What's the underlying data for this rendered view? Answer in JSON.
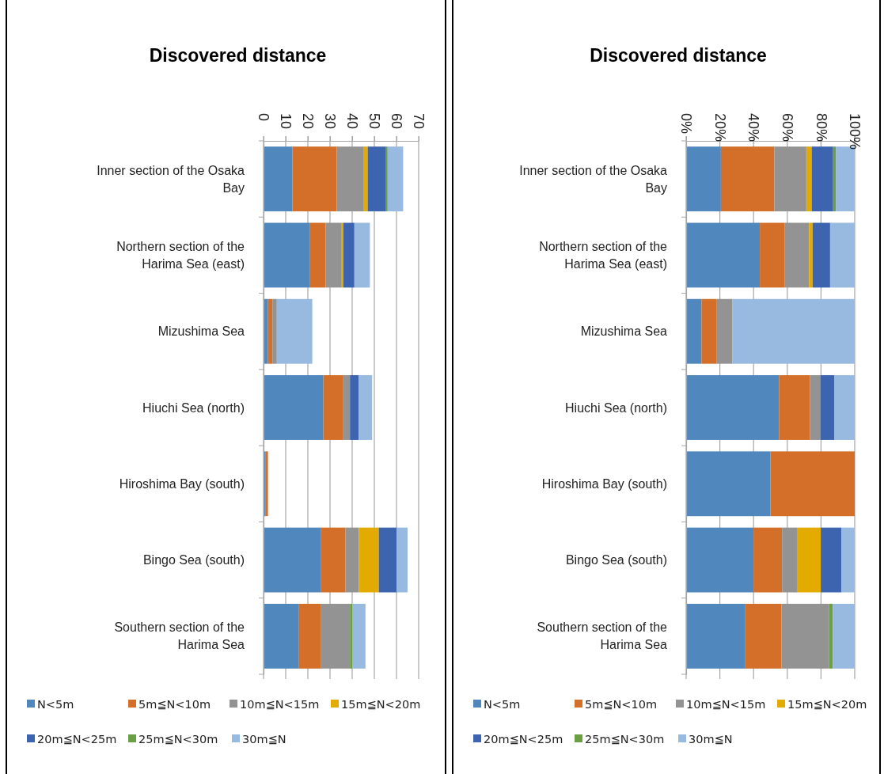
{
  "chart_data": [
    {
      "type": "bar",
      "orientation": "horizontal",
      "stacked": true,
      "title": "Discovered distance",
      "categories": [
        "Inner section of the Osaka Bay",
        "Northern section of the Harima Sea (east)",
        "Mizushima Sea",
        "Hiuchi Sea (north)",
        "Hiroshima Bay (south)",
        "Bingo Sea (south)",
        "Southern section of the Harima Sea"
      ],
      "series": [
        {
          "name": "N<5m",
          "color": "#5088be",
          "values": [
            13,
            21,
            2,
            27,
            1,
            26,
            16
          ]
        },
        {
          "name": "5m≦N<10m",
          "color": "#d46f2a",
          "values": [
            20,
            7,
            2,
            9,
            1,
            11,
            10
          ]
        },
        {
          "name": "10m≦N<15m",
          "color": "#939393",
          "values": [
            12,
            7,
            2,
            3,
            0,
            6,
            13
          ]
        },
        {
          "name": "15m≦N<20m",
          "color": "#e3aa00",
          "values": [
            2,
            1,
            0,
            0,
            0,
            9,
            0
          ]
        },
        {
          "name": "20m≦N<25m",
          "color": "#3d64ae",
          "values": [
            8,
            5,
            0,
            4,
            0,
            8,
            0
          ]
        },
        {
          "name": "25m≦N<30m",
          "color": "#6aa043",
          "values": [
            1,
            0,
            0,
            0,
            0,
            0,
            1
          ]
        },
        {
          "name": "30m≦N",
          "color": "#98b9e0",
          "values": [
            7,
            7,
            16,
            6,
            0,
            5,
            6
          ]
        }
      ],
      "xlim": [
        0,
        70
      ],
      "xticks": [
        0,
        10,
        20,
        30,
        40,
        50,
        60,
        70
      ],
      "grid": "x",
      "legend": "bottom"
    },
    {
      "type": "bar",
      "orientation": "horizontal",
      "stacked": true,
      "title": "Discovered distance",
      "categories": [
        "Inner section of the Osaka Bay",
        "Northern section of the Harima Sea (east)",
        "Mizushima Sea",
        "Hiuchi Sea (north)",
        "Hiroshima Bay (south)",
        "Bingo Sea (south)",
        "Southern section of the Harima Sea"
      ],
      "series": [
        {
          "name": "N<5m",
          "color": "#5088be",
          "values": [
            20.6,
            43.7,
            9.1,
            55.1,
            50,
            40.0,
            34.8
          ]
        },
        {
          "name": "5m≦N<10m",
          "color": "#d46f2a",
          "values": [
            31.7,
            14.6,
            9.1,
            18.4,
            50,
            16.9,
            21.7
          ]
        },
        {
          "name": "10m≦N<15m",
          "color": "#939393",
          "values": [
            19.0,
            14.6,
            9.1,
            6.1,
            0,
            9.2,
            28.3
          ]
        },
        {
          "name": "15m≦N<20m",
          "color": "#e3aa00",
          "values": [
            3.2,
            2.1,
            0,
            0,
            0,
            13.8,
            0
          ]
        },
        {
          "name": "20m≦N<25m",
          "color": "#3d64ae",
          "values": [
            12.7,
            10.4,
            0,
            8.2,
            0,
            12.3,
            0
          ]
        },
        {
          "name": "25m≦N<30m",
          "color": "#6aa043",
          "values": [
            1.6,
            0,
            0,
            0,
            0,
            0,
            2.2
          ]
        },
        {
          "name": "30m≦N",
          "color": "#98b9e0",
          "values": [
            11.1,
            14.6,
            72.7,
            12.2,
            0,
            7.7,
            13.0
          ]
        }
      ],
      "xlim": [
        0,
        100
      ],
      "xticks": [
        {
          "value": 0,
          "label": "0%"
        },
        {
          "value": 20,
          "label": "20%"
        },
        {
          "value": 40,
          "label": "40%"
        },
        {
          "value": 60,
          "label": "60%"
        },
        {
          "value": 80,
          "label": "80%"
        },
        {
          "value": 100,
          "label": "100%"
        }
      ],
      "grid": "x",
      "legend": "bottom"
    }
  ]
}
